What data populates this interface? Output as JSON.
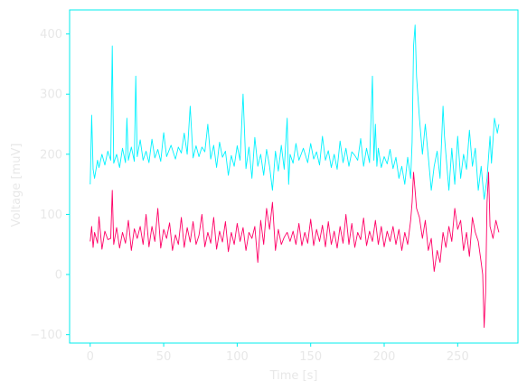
{
  "chart_data": {
    "type": "line",
    "title": "",
    "xlabel": "Time [s]",
    "ylabel": "Voltage [muV]",
    "xlim": [
      -14,
      291
    ],
    "ylim": [
      -114,
      440
    ],
    "xticks": [
      0,
      50,
      100,
      150,
      200,
      250
    ],
    "yticks": [
      -100,
      0,
      100,
      200,
      300,
      400
    ],
    "grid": false,
    "legend": "none",
    "colors": {
      "axes": "#00eeee",
      "tick_text": "#e8e8e8"
    },
    "series": [
      {
        "color": "#00f2ff",
        "points": [
          [
            0,
            150
          ],
          [
            1,
            265
          ],
          [
            2,
            175
          ],
          [
            3,
            160
          ],
          [
            5,
            190
          ],
          [
            6,
            178
          ],
          [
            8,
            200
          ],
          [
            10,
            182
          ],
          [
            12,
            205
          ],
          [
            14,
            190
          ],
          [
            15,
            380
          ],
          [
            16,
            185
          ],
          [
            18,
            200
          ],
          [
            20,
            178
          ],
          [
            22,
            210
          ],
          [
            24,
            186
          ],
          [
            25,
            260
          ],
          [
            26,
            190
          ],
          [
            28,
            212
          ],
          [
            30,
            188
          ],
          [
            31,
            330
          ],
          [
            32,
            196
          ],
          [
            34,
            224
          ],
          [
            36,
            190
          ],
          [
            38,
            205
          ],
          [
            40,
            186
          ],
          [
            42,
            225
          ],
          [
            44,
            194
          ],
          [
            46,
            208
          ],
          [
            48,
            188
          ],
          [
            50,
            236
          ],
          [
            52,
            196
          ],
          [
            55,
            215
          ],
          [
            58,
            192
          ],
          [
            60,
            212
          ],
          [
            62,
            202
          ],
          [
            64,
            235
          ],
          [
            66,
            200
          ],
          [
            68,
            280
          ],
          [
            70,
            194
          ],
          [
            72,
            214
          ],
          [
            74,
            196
          ],
          [
            76,
            212
          ],
          [
            78,
            204
          ],
          [
            80,
            250
          ],
          [
            82,
            192
          ],
          [
            84,
            215
          ],
          [
            86,
            178
          ],
          [
            88,
            220
          ],
          [
            90,
            195
          ],
          [
            92,
            205
          ],
          [
            94,
            165
          ],
          [
            96,
            198
          ],
          [
            98,
            180
          ],
          [
            100,
            214
          ],
          [
            102,
            190
          ],
          [
            104,
            300
          ],
          [
            106,
            176
          ],
          [
            108,
            212
          ],
          [
            110,
            160
          ],
          [
            112,
            228
          ],
          [
            114,
            180
          ],
          [
            116,
            200
          ],
          [
            118,
            165
          ],
          [
            120,
            208
          ],
          [
            122,
            180
          ],
          [
            124,
            140
          ],
          [
            126,
            205
          ],
          [
            128,
            172
          ],
          [
            130,
            215
          ],
          [
            132,
            175
          ],
          [
            134,
            260
          ],
          [
            135,
            150
          ],
          [
            136,
            200
          ],
          [
            138,
            185
          ],
          [
            140,
            218
          ],
          [
            142,
            190
          ],
          [
            145,
            210
          ],
          [
            148,
            186
          ],
          [
            150,
            218
          ],
          [
            152,
            192
          ],
          [
            154,
            204
          ],
          [
            156,
            182
          ],
          [
            158,
            230
          ],
          [
            160,
            190
          ],
          [
            162,
            206
          ],
          [
            164,
            178
          ],
          [
            166,
            200
          ],
          [
            168,
            175
          ],
          [
            170,
            222
          ],
          [
            172,
            186
          ],
          [
            174,
            210
          ],
          [
            176,
            180
          ],
          [
            178,
            204
          ],
          [
            180,
            198
          ],
          [
            182,
            190
          ],
          [
            184,
            226
          ],
          [
            186,
            180
          ],
          [
            188,
            210
          ],
          [
            190,
            186
          ],
          [
            192,
            330
          ],
          [
            193,
            190
          ],
          [
            194,
            250
          ],
          [
            195,
            180
          ],
          [
            196,
            210
          ],
          [
            198,
            178
          ],
          [
            200,
            196
          ],
          [
            202,
            184
          ],
          [
            204,
            208
          ],
          [
            206,
            176
          ],
          [
            208,
            195
          ],
          [
            210,
            160
          ],
          [
            212,
            180
          ],
          [
            214,
            150
          ],
          [
            216,
            195
          ],
          [
            218,
            160
          ],
          [
            219,
            220
          ],
          [
            220,
            380
          ],
          [
            221,
            415
          ],
          [
            222,
            330
          ],
          [
            224,
            260
          ],
          [
            226,
            200
          ],
          [
            228,
            250
          ],
          [
            230,
            196
          ],
          [
            232,
            140
          ],
          [
            234,
            180
          ],
          [
            236,
            205
          ],
          [
            238,
            160
          ],
          [
            240,
            280
          ],
          [
            241,
            230
          ],
          [
            242,
            200
          ],
          [
            244,
            140
          ],
          [
            246,
            210
          ],
          [
            248,
            150
          ],
          [
            250,
            230
          ],
          [
            252,
            160
          ],
          [
            254,
            200
          ],
          [
            256,
            175
          ],
          [
            258,
            240
          ],
          [
            260,
            180
          ],
          [
            262,
            210
          ],
          [
            264,
            140
          ],
          [
            266,
            180
          ],
          [
            268,
            125
          ],
          [
            270,
            160
          ],
          [
            272,
            230
          ],
          [
            273,
            185
          ],
          [
            275,
            260
          ],
          [
            277,
            235
          ],
          [
            278,
            250
          ]
        ]
      },
      {
        "color": "#ff0066",
        "points": [
          [
            0,
            55
          ],
          [
            1,
            80
          ],
          [
            2,
            45
          ],
          [
            3,
            70
          ],
          [
            5,
            52
          ],
          [
            6,
            96
          ],
          [
            8,
            42
          ],
          [
            10,
            72
          ],
          [
            12,
            58
          ],
          [
            14,
            60
          ],
          [
            15,
            140
          ],
          [
            16,
            50
          ],
          [
            18,
            78
          ],
          [
            20,
            44
          ],
          [
            22,
            70
          ],
          [
            24,
            52
          ],
          [
            26,
            90
          ],
          [
            28,
            40
          ],
          [
            30,
            76
          ],
          [
            32,
            60
          ],
          [
            34,
            80
          ],
          [
            36,
            50
          ],
          [
            38,
            100
          ],
          [
            40,
            46
          ],
          [
            42,
            80
          ],
          [
            44,
            55
          ],
          [
            46,
            110
          ],
          [
            48,
            44
          ],
          [
            50,
            75
          ],
          [
            52,
            60
          ],
          [
            54,
            86
          ],
          [
            56,
            40
          ],
          [
            58,
            66
          ],
          [
            60,
            50
          ],
          [
            62,
            95
          ],
          [
            64,
            45
          ],
          [
            66,
            78
          ],
          [
            68,
            54
          ],
          [
            70,
            88
          ],
          [
            72,
            50
          ],
          [
            74,
            65
          ],
          [
            76,
            100
          ],
          [
            78,
            46
          ],
          [
            80,
            70
          ],
          [
            82,
            52
          ],
          [
            84,
            95
          ],
          [
            86,
            42
          ],
          [
            88,
            72
          ],
          [
            90,
            54
          ],
          [
            92,
            88
          ],
          [
            94,
            38
          ],
          [
            96,
            70
          ],
          [
            98,
            50
          ],
          [
            100,
            85
          ],
          [
            102,
            55
          ],
          [
            104,
            78
          ],
          [
            106,
            40
          ],
          [
            108,
            70
          ],
          [
            110,
            60
          ],
          [
            112,
            80
          ],
          [
            114,
            20
          ],
          [
            116,
            90
          ],
          [
            118,
            50
          ],
          [
            120,
            110
          ],
          [
            122,
            75
          ],
          [
            124,
            120
          ],
          [
            126,
            40
          ],
          [
            128,
            75
          ],
          [
            130,
            50
          ],
          [
            132,
            62
          ],
          [
            134,
            70
          ],
          [
            136,
            55
          ],
          [
            138,
            72
          ],
          [
            140,
            50
          ],
          [
            142,
            85
          ],
          [
            144,
            48
          ],
          [
            146,
            70
          ],
          [
            148,
            52
          ],
          [
            150,
            92
          ],
          [
            152,
            48
          ],
          [
            154,
            75
          ],
          [
            156,
            55
          ],
          [
            158,
            82
          ],
          [
            160,
            46
          ],
          [
            162,
            88
          ],
          [
            164,
            50
          ],
          [
            166,
            72
          ],
          [
            168,
            44
          ],
          [
            170,
            80
          ],
          [
            172,
            52
          ],
          [
            174,
            100
          ],
          [
            176,
            50
          ],
          [
            178,
            85
          ],
          [
            180,
            45
          ],
          [
            182,
            70
          ],
          [
            184,
            58
          ],
          [
            186,
            94
          ],
          [
            188,
            48
          ],
          [
            190,
            72
          ],
          [
            192,
            55
          ],
          [
            194,
            90
          ],
          [
            196,
            50
          ],
          [
            198,
            80
          ],
          [
            200,
            46
          ],
          [
            202,
            72
          ],
          [
            204,
            55
          ],
          [
            206,
            80
          ],
          [
            208,
            50
          ],
          [
            210,
            75
          ],
          [
            212,
            40
          ],
          [
            214,
            70
          ],
          [
            216,
            50
          ],
          [
            218,
            90
          ],
          [
            219,
            120
          ],
          [
            220,
            170
          ],
          [
            221,
            140
          ],
          [
            222,
            110
          ],
          [
            224,
            95
          ],
          [
            226,
            60
          ],
          [
            228,
            90
          ],
          [
            230,
            40
          ],
          [
            232,
            60
          ],
          [
            234,
            5
          ],
          [
            236,
            40
          ],
          [
            238,
            20
          ],
          [
            240,
            70
          ],
          [
            242,
            45
          ],
          [
            244,
            80
          ],
          [
            246,
            55
          ],
          [
            248,
            110
          ],
          [
            250,
            75
          ],
          [
            252,
            90
          ],
          [
            254,
            40
          ],
          [
            256,
            70
          ],
          [
            258,
            30
          ],
          [
            260,
            95
          ],
          [
            262,
            70
          ],
          [
            264,
            55
          ],
          [
            266,
            20
          ],
          [
            267,
            0
          ],
          [
            268,
            -88
          ],
          [
            269,
            -30
          ],
          [
            270,
            120
          ],
          [
            271,
            170
          ],
          [
            272,
            80
          ],
          [
            274,
            60
          ],
          [
            276,
            90
          ],
          [
            278,
            70
          ]
        ]
      }
    ]
  }
}
